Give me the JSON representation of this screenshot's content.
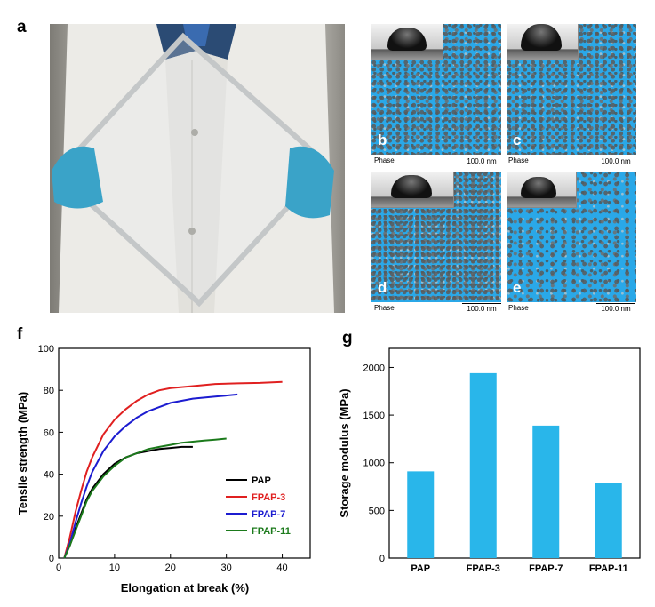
{
  "panel_labels": {
    "a": "a",
    "f": "f",
    "g": "g"
  },
  "afm": [
    {
      "letter": "b",
      "phase": "Phase",
      "scale": "100.0 nm"
    },
    {
      "letter": "c",
      "phase": "Phase",
      "scale": "100.0 nm"
    },
    {
      "letter": "d",
      "phase": "Phase",
      "scale": "100.0 nm"
    },
    {
      "letter": "e",
      "phase": "Phase",
      "scale": "100.0 nm"
    }
  ],
  "colors": {
    "afm_blue": "#2aa8e8",
    "bar": "#29b6ea"
  },
  "chart_data": [
    {
      "type": "line",
      "xlabel": "Elongation at break (%)",
      "ylabel": "Tensile strength (MPa)",
      "xlim": [
        0,
        45
      ],
      "ylim": [
        0,
        100
      ],
      "xticks": [
        "0",
        "10",
        "20",
        "30",
        "40"
      ],
      "yticks": [
        "0",
        "20",
        "40",
        "60",
        "80",
        "100"
      ],
      "legend_position": "bottom-right",
      "series": [
        {
          "name": "PAP",
          "color": "#000000",
          "points": [
            [
              1,
              0
            ],
            [
              2,
              6
            ],
            [
              3,
              14
            ],
            [
              4,
              21
            ],
            [
              5,
              28
            ],
            [
              6,
              33
            ],
            [
              8,
              40
            ],
            [
              10,
              45
            ],
            [
              12,
              48
            ],
            [
              14,
              50
            ],
            [
              16,
              51
            ],
            [
              18,
              52
            ],
            [
              20,
              52.5
            ],
            [
              22,
              53
            ],
            [
              24,
              53
            ]
          ]
        },
        {
          "name": "FPAP-3",
          "color": "#e02020",
          "points": [
            [
              1,
              0
            ],
            [
              2,
              10
            ],
            [
              3,
              22
            ],
            [
              4,
              32
            ],
            [
              5,
              41
            ],
            [
              6,
              48
            ],
            [
              8,
              59
            ],
            [
              10,
              66
            ],
            [
              12,
              71
            ],
            [
              14,
              75
            ],
            [
              16,
              78
            ],
            [
              18,
              80
            ],
            [
              20,
              81
            ],
            [
              24,
              82
            ],
            [
              28,
              83
            ],
            [
              32,
              83.3
            ],
            [
              36,
              83.5
            ],
            [
              40,
              84
            ]
          ]
        },
        {
          "name": "FPAP-7",
          "color": "#1c1cd0",
          "points": [
            [
              1,
              0
            ],
            [
              2,
              7
            ],
            [
              3,
              17
            ],
            [
              4,
              26
            ],
            [
              5,
              34
            ],
            [
              6,
              41
            ],
            [
              8,
              51
            ],
            [
              10,
              58
            ],
            [
              12,
              63
            ],
            [
              14,
              67
            ],
            [
              16,
              70
            ],
            [
              18,
              72
            ],
            [
              20,
              74
            ],
            [
              24,
              76
            ],
            [
              28,
              77
            ],
            [
              32,
              78
            ]
          ]
        },
        {
          "name": "FPAP-11",
          "color": "#1b7a1b",
          "points": [
            [
              1,
              0
            ],
            [
              2,
              6
            ],
            [
              3,
              13
            ],
            [
              4,
              20
            ],
            [
              5,
              27
            ],
            [
              6,
              32
            ],
            [
              8,
              39
            ],
            [
              10,
              44
            ],
            [
              12,
              48
            ],
            [
              14,
              50
            ],
            [
              16,
              52
            ],
            [
              18,
              53
            ],
            [
              20,
              54
            ],
            [
              22,
              55
            ],
            [
              24,
              55.5
            ],
            [
              26,
              56
            ],
            [
              28,
              56.5
            ],
            [
              30,
              57
            ]
          ]
        }
      ]
    },
    {
      "type": "bar",
      "ylabel": "Storage modulus (MPa)",
      "ylim": [
        0,
        2200
      ],
      "yticks": [
        "0",
        "500",
        "1000",
        "1500",
        "2000"
      ],
      "categories": [
        "PAP",
        "FPAP-3",
        "FPAP-7",
        "FPAP-11"
      ],
      "values": [
        910,
        1940,
        1390,
        790
      ]
    }
  ]
}
